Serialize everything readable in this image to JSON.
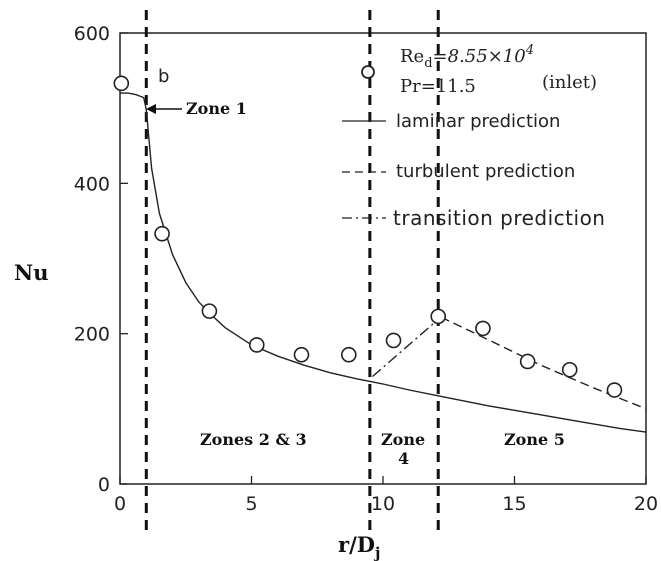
{
  "chart_data": {
    "type": "line",
    "xlabel_main": "r/D",
    "xlabel_sub": "j",
    "ylabel": "Nu",
    "xlim": [
      0,
      20
    ],
    "ylim": [
      0,
      600
    ],
    "x_ticks": [
      0,
      5,
      10,
      15,
      20
    ],
    "y_ticks": [
      0,
      200,
      400,
      600
    ],
    "experimental_label": "(inlet)",
    "params": {
      "re_main": "Re",
      "re_sub": "d",
      "re_value": "=8.55×10",
      "re_exp": "4",
      "pr": "Pr=11.5"
    },
    "legend": {
      "laminar": "laminar prediction",
      "turbulent": "turbulent prediction",
      "transition": "transition prediction"
    },
    "series": [
      {
        "name": "experimental",
        "style": "open-circle",
        "x": [
          0.05,
          1.6,
          3.4,
          5.2,
          6.9,
          8.7,
          10.4,
          12.1,
          13.8,
          15.5,
          17.1,
          18.8
        ],
        "y": [
          533,
          333,
          230,
          185,
          172,
          172,
          191,
          223,
          207,
          163,
          152,
          125
        ]
      },
      {
        "name": "laminar prediction",
        "style": "solid",
        "x": [
          0.0,
          0.3,
          0.6,
          0.9,
          1.0,
          1.2,
          1.5,
          2.0,
          2.5,
          3.0,
          3.5,
          4.0,
          5.0,
          6.0,
          7.0,
          8.0,
          9.0,
          10.0,
          11.0,
          12.0,
          13.0,
          14.0,
          15.0,
          16.0,
          17.0,
          18.0,
          19.0,
          20.0
        ],
        "y": [
          520,
          520,
          518,
          514,
          498,
          420,
          360,
          305,
          268,
          242,
          224,
          208,
          185,
          170,
          158,
          148,
          140,
          133,
          125,
          118,
          111,
          104,
          98,
          92,
          86,
          80,
          74,
          69
        ]
      },
      {
        "name": "transition prediction",
        "style": "dash-dot",
        "x": [
          9.6,
          12.2
        ],
        "y": [
          143,
          222
        ]
      },
      {
        "name": "turbulent prediction",
        "style": "dashed",
        "x": [
          12.2,
          14.0,
          16.0,
          18.0,
          20.0
        ],
        "y": [
          222,
          192,
          158,
          128,
          100
        ]
      }
    ],
    "zone_dividers": [
      1.0,
      9.5,
      12.1
    ],
    "annotations": {
      "b_label": "b",
      "zone1": "Zone 1",
      "zones23": "Zones 2 & 3",
      "zone4_line1": "Zone",
      "zone4_line2": "4",
      "zone5": "Zone 5"
    }
  }
}
